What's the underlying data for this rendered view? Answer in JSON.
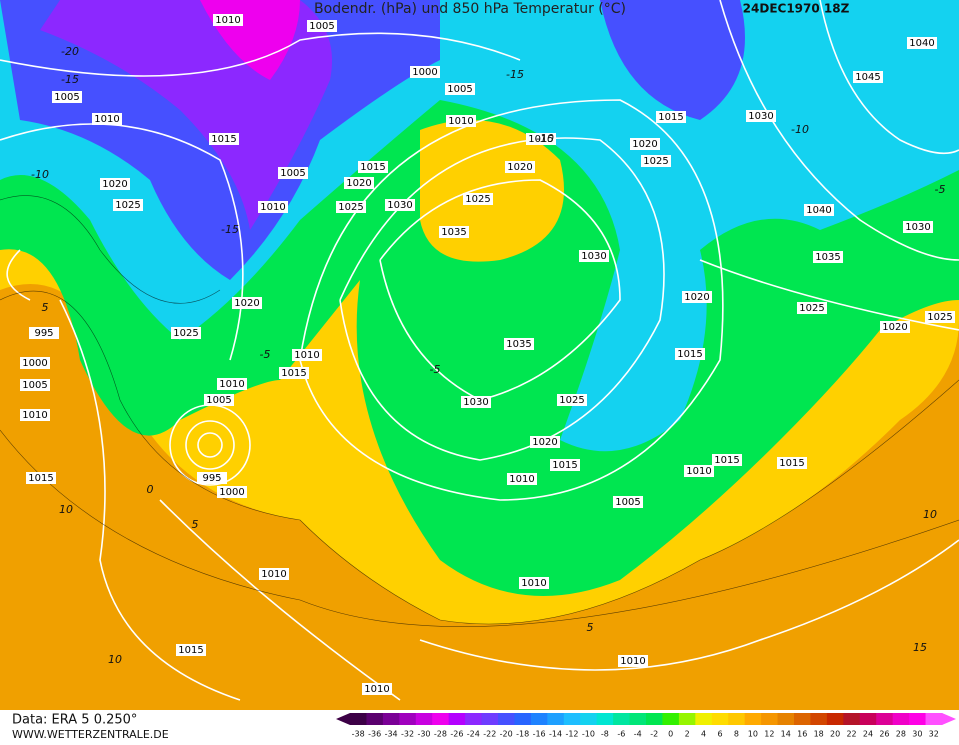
{
  "header": {
    "title": "Bodendr. (hPa) und 850 hPa Temperatur (°C)",
    "date": "24DEC1970 18Z"
  },
  "footer": {
    "source": "Data: ERA 5 0.250°",
    "site": "WWW.WETTERZENTRALE.DE"
  },
  "colorbar": {
    "ticks": [
      -38,
      -36,
      -34,
      -32,
      -30,
      -28,
      -26,
      -24,
      -22,
      -20,
      -18,
      -16,
      -14,
      -12,
      -10,
      -8,
      -6,
      -4,
      -2,
      0,
      2,
      4,
      6,
      8,
      10,
      12,
      14,
      16,
      18,
      20,
      22,
      24,
      26,
      28,
      30,
      32
    ],
    "colors": [
      "#3c0046",
      "#5a006e",
      "#7a0096",
      "#a000be",
      "#c800e0",
      "#ee00ee",
      "#b400ff",
      "#8c28ff",
      "#6e3cff",
      "#4650ff",
      "#2864ff",
      "#1e82ff",
      "#1ea0ff",
      "#1ebeff",
      "#14d2f0",
      "#00e6d2",
      "#00e6a0",
      "#00e678",
      "#00e650",
      "#32f000",
      "#96f500",
      "#f0f000",
      "#ffdc00",
      "#ffc800",
      "#ffaa00",
      "#f59600",
      "#e68200",
      "#dc6400",
      "#d24600",
      "#c82800",
      "#b41428",
      "#c8005a",
      "#dc0096",
      "#f000c8",
      "#ff00e6",
      "#ff50ff"
    ]
  },
  "isobar_labels": [
    "1010",
    "1005",
    "1005",
    "1010",
    "1015",
    "1000",
    "1005",
    "1010",
    "1015",
    "1020",
    "1025",
    "1030",
    "1035",
    "1015",
    "1020",
    "1025",
    "1005",
    "1010",
    "1020",
    "1025",
    "1020",
    "1025",
    "995",
    "1000",
    "1005",
    "1010",
    "1015",
    "1010",
    "1015",
    "1010",
    "1005",
    "995",
    "1000",
    "1010",
    "1015",
    "1010",
    "1010",
    "1010",
    "1005",
    "1010",
    "1015",
    "1020",
    "1025",
    "1030",
    "1035",
    "1030",
    "1020",
    "1025",
    "1015",
    "1030",
    "1040",
    "1045",
    "1040",
    "1030",
    "1035",
    "1020",
    "1025",
    "1020",
    "1025",
    "1015",
    "1010",
    "1015",
    "1015"
  ],
  "temperature_labels": [
    "-20",
    "-15",
    "-10",
    "-15",
    "-10",
    "-15",
    "-5",
    "5",
    "10",
    "10",
    "5",
    "-5",
    "0",
    "5",
    "10",
    "15",
    "-10",
    "-5"
  ]
}
